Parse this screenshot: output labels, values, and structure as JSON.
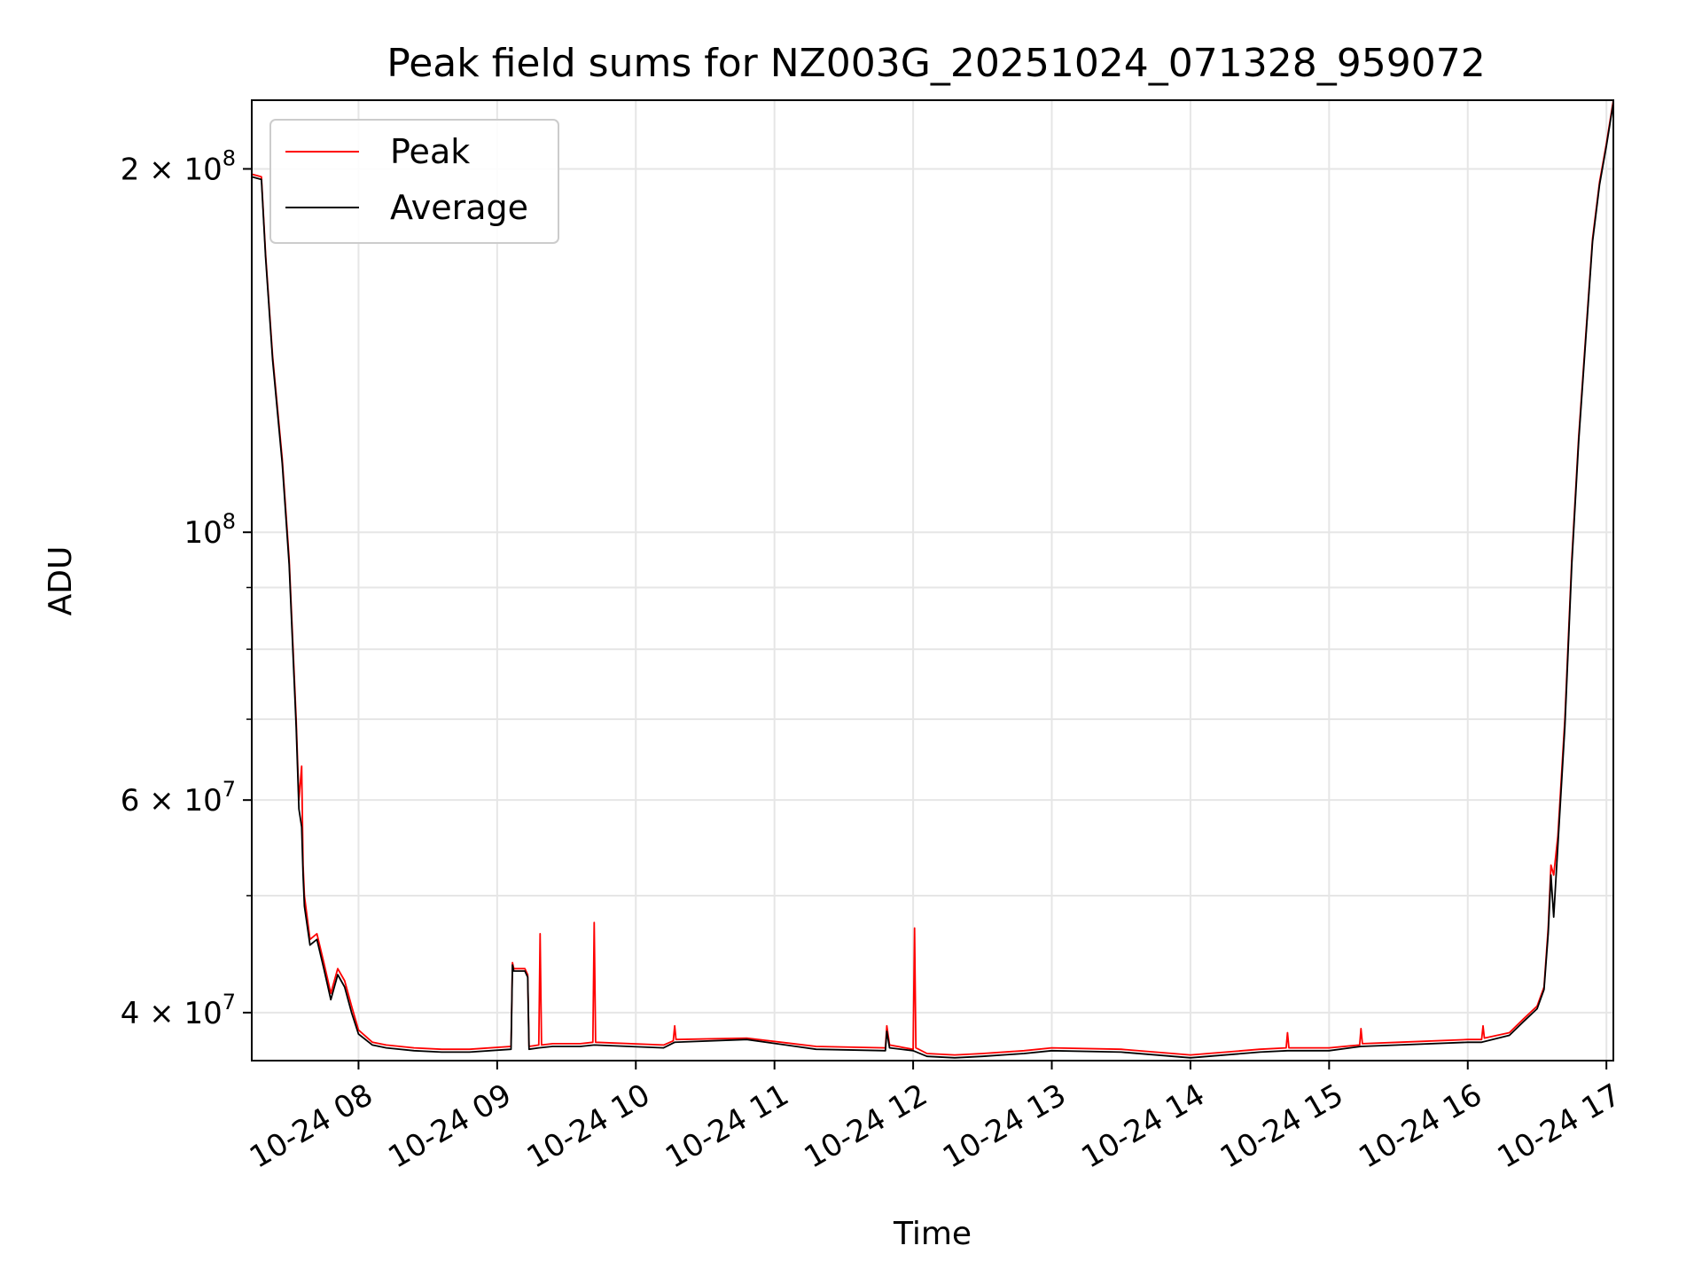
{
  "chart_data": {
    "type": "line",
    "title": "Peak field sums for NZ003G_20251024_071328_959072",
    "xlabel": "Time",
    "ylabel": "ADU",
    "x_unit": "hours of day 2025-10-24",
    "xlim": [
      7.23,
      17.05
    ],
    "ylim": [
      36500000,
      228000000
    ],
    "yscale": "log",
    "grid": true,
    "legend_position": "top-left",
    "x_ticks": [
      {
        "value": 8,
        "label": "10-24 08"
      },
      {
        "value": 9,
        "label": "10-24 09"
      },
      {
        "value": 10,
        "label": "10-24 10"
      },
      {
        "value": 11,
        "label": "10-24 11"
      },
      {
        "value": 12,
        "label": "10-24 12"
      },
      {
        "value": 13,
        "label": "10-24 13"
      },
      {
        "value": 14,
        "label": "10-24 14"
      },
      {
        "value": 15,
        "label": "10-24 15"
      },
      {
        "value": 16,
        "label": "10-24 16"
      },
      {
        "value": 17,
        "label": "10-24 17"
      }
    ],
    "y_major_ticks": [
      {
        "value": 40000000,
        "mantissa": "4",
        "exp": "7"
      },
      {
        "value": 60000000,
        "mantissa": "6",
        "exp": "7"
      },
      {
        "value": 100000000,
        "mantissa": "",
        "exp": "8"
      },
      {
        "value": 200000000,
        "mantissa": "2",
        "exp": "8"
      }
    ],
    "y_minor_ticks": [
      50000000,
      70000000,
      80000000,
      90000000
    ],
    "series": [
      {
        "name": "Peak",
        "color": "#ff0000",
        "x": [
          7.23,
          7.3,
          7.33,
          7.38,
          7.45,
          7.5,
          7.55,
          7.57,
          7.59,
          7.6,
          7.61,
          7.65,
          7.7,
          7.75,
          7.78,
          7.8,
          7.85,
          7.9,
          7.95,
          8.0,
          8.1,
          8.2,
          8.4,
          8.6,
          8.8,
          9.1,
          9.11,
          9.12,
          9.2,
          9.22,
          9.23,
          9.3,
          9.31,
          9.32,
          9.4,
          9.6,
          9.69,
          9.7,
          9.71,
          10.2,
          10.27,
          10.28,
          10.29,
          10.8,
          11.3,
          11.8,
          11.81,
          11.83,
          12.0,
          12.01,
          12.02,
          12.1,
          12.3,
          12.5,
          12.8,
          13.0,
          13.5,
          14.0,
          14.5,
          14.69,
          14.7,
          14.71,
          15.0,
          15.22,
          15.23,
          15.24,
          15.5,
          16.0,
          16.1,
          16.11,
          16.12,
          16.3,
          16.4,
          16.5,
          16.55,
          16.58,
          16.6,
          16.62,
          16.65,
          16.7,
          16.75,
          16.8,
          16.85,
          16.9,
          16.95,
          17.0,
          17.05
        ],
        "y": [
          198000000,
          197000000,
          170000000,
          140000000,
          115000000,
          95000000,
          70000000,
          60000000,
          64000000,
          53000000,
          50000000,
          46000000,
          46500000,
          44000000,
          42500000,
          41500000,
          43500000,
          42500000,
          40500000,
          38700000,
          37800000,
          37600000,
          37400000,
          37300000,
          37300000,
          37500000,
          44000000,
          43500000,
          43500000,
          43000000,
          37500000,
          37600000,
          46500000,
          37600000,
          37700000,
          37700000,
          37800000,
          47500000,
          37800000,
          37600000,
          37900000,
          39000000,
          38000000,
          38100000,
          37500000,
          37400000,
          39000000,
          37600000,
          37300000,
          47000000,
          37400000,
          37000000,
          36900000,
          37000000,
          37200000,
          37400000,
          37300000,
          36900000,
          37300000,
          37400000,
          38500000,
          37400000,
          37400000,
          37600000,
          38800000,
          37700000,
          37800000,
          38000000,
          38000000,
          39000000,
          38100000,
          38500000,
          39500000,
          40500000,
          42000000,
          47000000,
          53000000,
          52000000,
          56000000,
          70000000,
          95000000,
          120000000,
          145000000,
          175000000,
          195000000,
          210000000,
          228000000
        ]
      },
      {
        "name": "Average",
        "color": "#000000",
        "x": [
          7.23,
          7.3,
          7.33,
          7.38,
          7.45,
          7.5,
          7.55,
          7.57,
          7.59,
          7.6,
          7.61,
          7.65,
          7.7,
          7.75,
          7.78,
          7.8,
          7.85,
          7.9,
          7.95,
          8.0,
          8.1,
          8.2,
          8.4,
          8.6,
          8.8,
          9.1,
          9.11,
          9.12,
          9.2,
          9.22,
          9.23,
          9.3,
          9.4,
          9.6,
          9.7,
          10.2,
          10.28,
          10.8,
          11.3,
          11.8,
          11.81,
          11.83,
          12.0,
          12.1,
          12.3,
          12.5,
          12.8,
          13.0,
          13.5,
          14.0,
          14.5,
          14.7,
          15.0,
          15.23,
          15.5,
          16.0,
          16.1,
          16.3,
          16.4,
          16.5,
          16.55,
          16.58,
          16.6,
          16.62,
          16.65,
          16.7,
          16.75,
          16.8,
          16.85,
          16.9,
          16.95,
          17.0,
          17.05
        ],
        "y": [
          197000000,
          196000000,
          169000000,
          139000000,
          114000000,
          94000000,
          69000000,
          59000000,
          57000000,
          52000000,
          49000000,
          45500000,
          46000000,
          43500000,
          42000000,
          41000000,
          43000000,
          42000000,
          40000000,
          38400000,
          37600000,
          37400000,
          37200000,
          37100000,
          37100000,
          37300000,
          43800000,
          43300000,
          43300000,
          42800000,
          37300000,
          37400000,
          37500000,
          37500000,
          37600000,
          37400000,
          37800000,
          38000000,
          37300000,
          37200000,
          38600000,
          37400000,
          37200000,
          36800000,
          36700000,
          36800000,
          37000000,
          37200000,
          37100000,
          36700000,
          37100000,
          37200000,
          37200000,
          37500000,
          37600000,
          37800000,
          37800000,
          38300000,
          39300000,
          40300000,
          41800000,
          46500000,
          52000000,
          48000000,
          55000000,
          69000000,
          94000000,
          119000000,
          144000000,
          174000000,
          194000000,
          209000000,
          227000000
        ]
      }
    ]
  }
}
